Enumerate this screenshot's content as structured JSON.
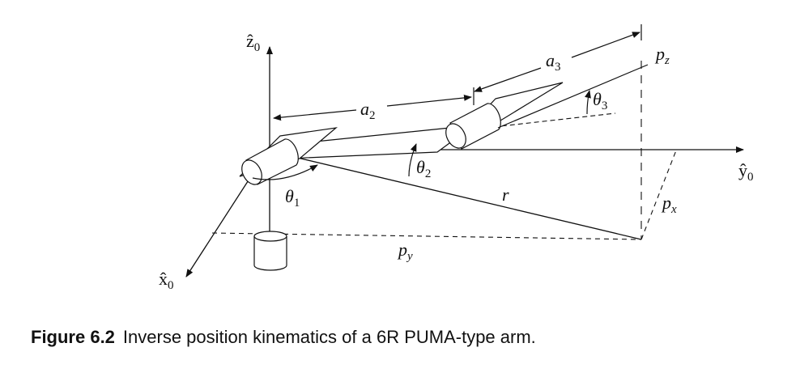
{
  "axes": {
    "z": "ẑ",
    "y": "ŷ",
    "x": "x̂",
    "sub": "0"
  },
  "labels": {
    "a2": "a",
    "a2_sub": "2",
    "a3": "a",
    "a3_sub": "3",
    "theta1": "θ",
    "theta1_sub": "1",
    "theta2": "θ",
    "theta2_sub": "2",
    "theta3": "θ",
    "theta3_sub": "3",
    "r": "r",
    "pz": "p",
    "pz_sub": "z",
    "px": "p",
    "px_sub": "x",
    "py": "p",
    "py_sub": "y"
  },
  "caption": {
    "label": "Figure 6.2",
    "text": "Inverse position kinematics of a 6R PUMA-type arm."
  }
}
